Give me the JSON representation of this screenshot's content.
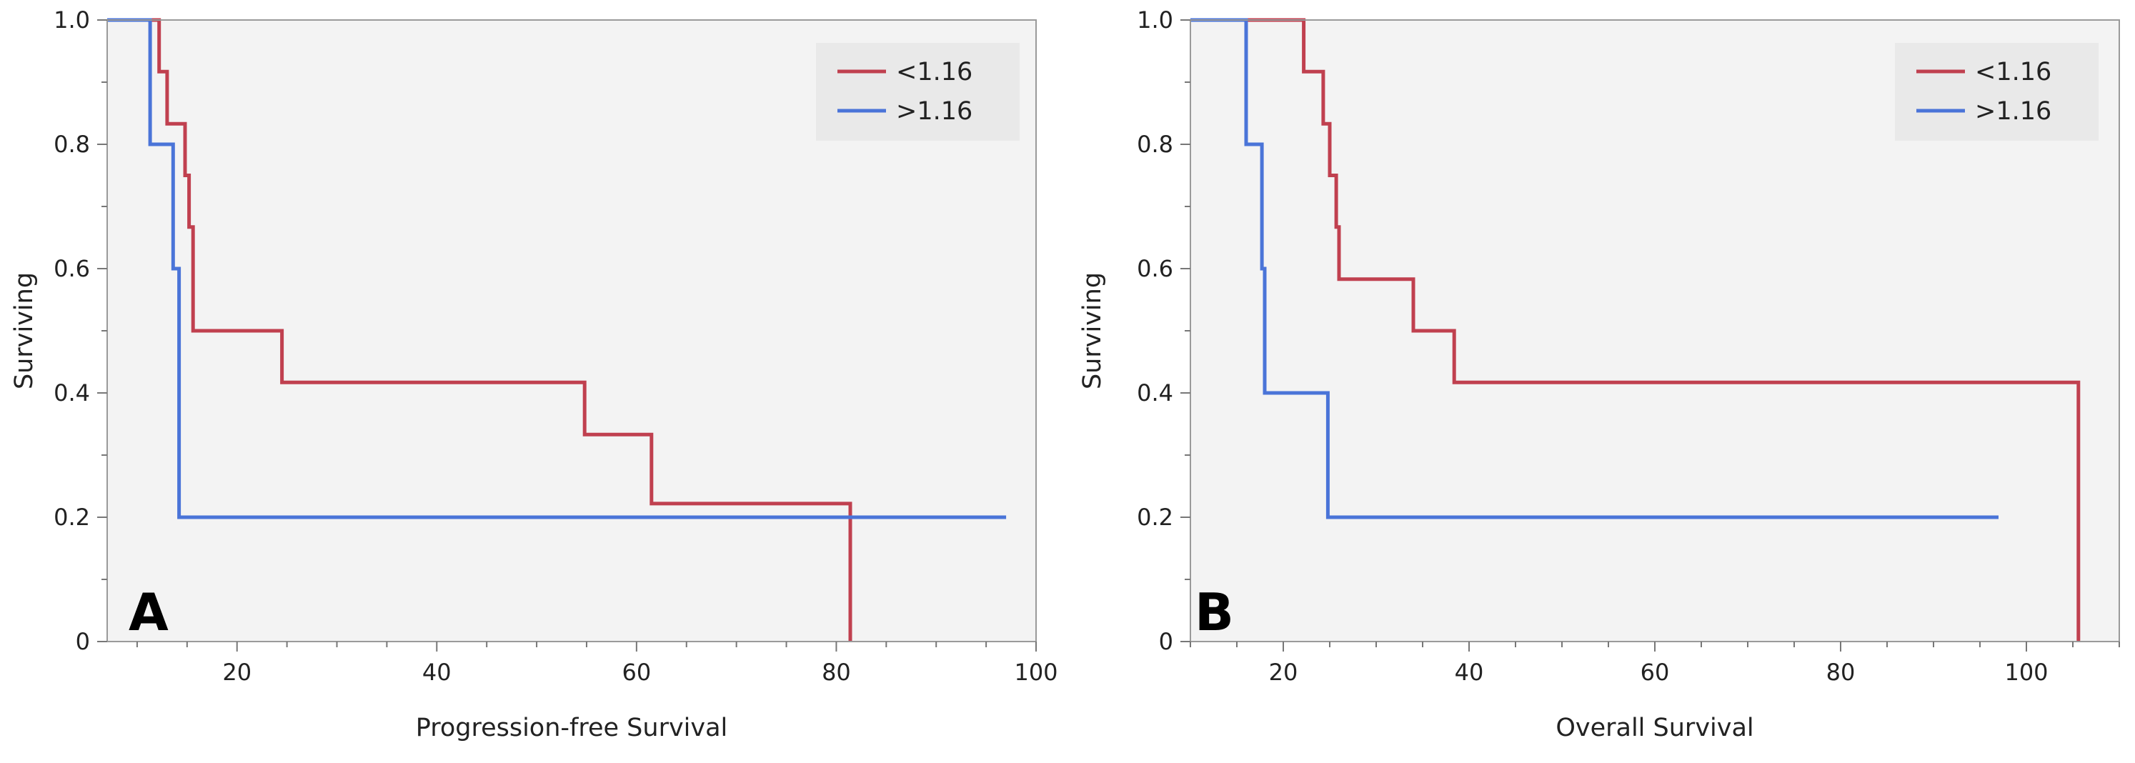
{
  "colors": {
    "low_group": "#c0404f",
    "high_group": "#4a74d8",
    "background": "#f3f3f3",
    "frame": "#9a9a9a",
    "legend_bg": "#e9e9e9"
  },
  "chart_data": [
    {
      "type": "line",
      "panel_label": "A",
      "xlabel": "Progression-free Survival",
      "ylabel": "Surviving",
      "xlim": [
        7,
        100
      ],
      "ylim": [
        0,
        1.0
      ],
      "x_ticks": [
        20,
        40,
        60,
        80,
        100
      ],
      "y_ticks": [
        0,
        0.2,
        0.4,
        0.6,
        0.8,
        1.0
      ],
      "y_tick_labels": [
        "0",
        "0.2",
        "0.4",
        "0.6",
        "0.8",
        "1.0"
      ],
      "legend": [
        "<1.16",
        ">1.16"
      ],
      "series": [
        {
          "name": "<1.16",
          "color_key": "low_group",
          "step_points": [
            [
              7,
              1.0
            ],
            [
              12.2,
              1.0
            ],
            [
              12.2,
              0.917
            ],
            [
              13,
              0.917
            ],
            [
              13,
              0.833
            ],
            [
              14.8,
              0.833
            ],
            [
              14.8,
              0.75
            ],
            [
              15.2,
              0.75
            ],
            [
              15.2,
              0.667
            ],
            [
              15.6,
              0.667
            ],
            [
              15.6,
              0.5
            ],
            [
              24.5,
              0.5
            ],
            [
              24.5,
              0.417
            ],
            [
              54.8,
              0.417
            ],
            [
              54.8,
              0.333
            ],
            [
              61.5,
              0.333
            ],
            [
              61.5,
              0.222
            ],
            [
              81.4,
              0.222
            ],
            [
              81.4,
              0
            ]
          ]
        },
        {
          "name": ">1.16",
          "color_key": "high_group",
          "step_points": [
            [
              7,
              1.0
            ],
            [
              11.3,
              1.0
            ],
            [
              11.3,
              0.8
            ],
            [
              13.6,
              0.8
            ],
            [
              13.6,
              0.6
            ],
            [
              14.2,
              0.6
            ],
            [
              14.2,
              0.2
            ],
            [
              97,
              0.2
            ]
          ]
        }
      ]
    },
    {
      "type": "line",
      "panel_label": "B",
      "xlabel": "Overall Survival",
      "ylabel": "Surviving",
      "xlim": [
        10,
        110
      ],
      "ylim": [
        0,
        1.0
      ],
      "x_ticks": [
        20,
        40,
        60,
        80,
        100
      ],
      "y_ticks": [
        0,
        0.2,
        0.4,
        0.6,
        0.8,
        1.0
      ],
      "y_tick_labels": [
        "0",
        "0.2",
        "0.4",
        "0.6",
        "0.8",
        "1.0"
      ],
      "legend": [
        "<1.16",
        ">1.16"
      ],
      "series": [
        {
          "name": "<1.16",
          "color_key": "low_group",
          "step_points": [
            [
              10,
              1.0
            ],
            [
              22.2,
              1.0
            ],
            [
              22.2,
              0.917
            ],
            [
              24.3,
              0.917
            ],
            [
              24.3,
              0.833
            ],
            [
              25,
              0.833
            ],
            [
              25,
              0.75
            ],
            [
              25.7,
              0.75
            ],
            [
              25.7,
              0.667
            ],
            [
              26,
              0.667
            ],
            [
              26,
              0.583
            ],
            [
              34,
              0.583
            ],
            [
              34,
              0.5
            ],
            [
              38.4,
              0.5
            ],
            [
              38.4,
              0.417
            ],
            [
              105.6,
              0.417
            ],
            [
              105.6,
              0
            ]
          ]
        },
        {
          "name": ">1.16",
          "color_key": "high_group",
          "step_points": [
            [
              10,
              1.0
            ],
            [
              16,
              1.0
            ],
            [
              16,
              0.8
            ],
            [
              17.7,
              0.8
            ],
            [
              17.7,
              0.6
            ],
            [
              18,
              0.6
            ],
            [
              18,
              0.4
            ],
            [
              24.8,
              0.4
            ],
            [
              24.8,
              0.2
            ],
            [
              97,
              0.2
            ]
          ]
        }
      ]
    }
  ]
}
